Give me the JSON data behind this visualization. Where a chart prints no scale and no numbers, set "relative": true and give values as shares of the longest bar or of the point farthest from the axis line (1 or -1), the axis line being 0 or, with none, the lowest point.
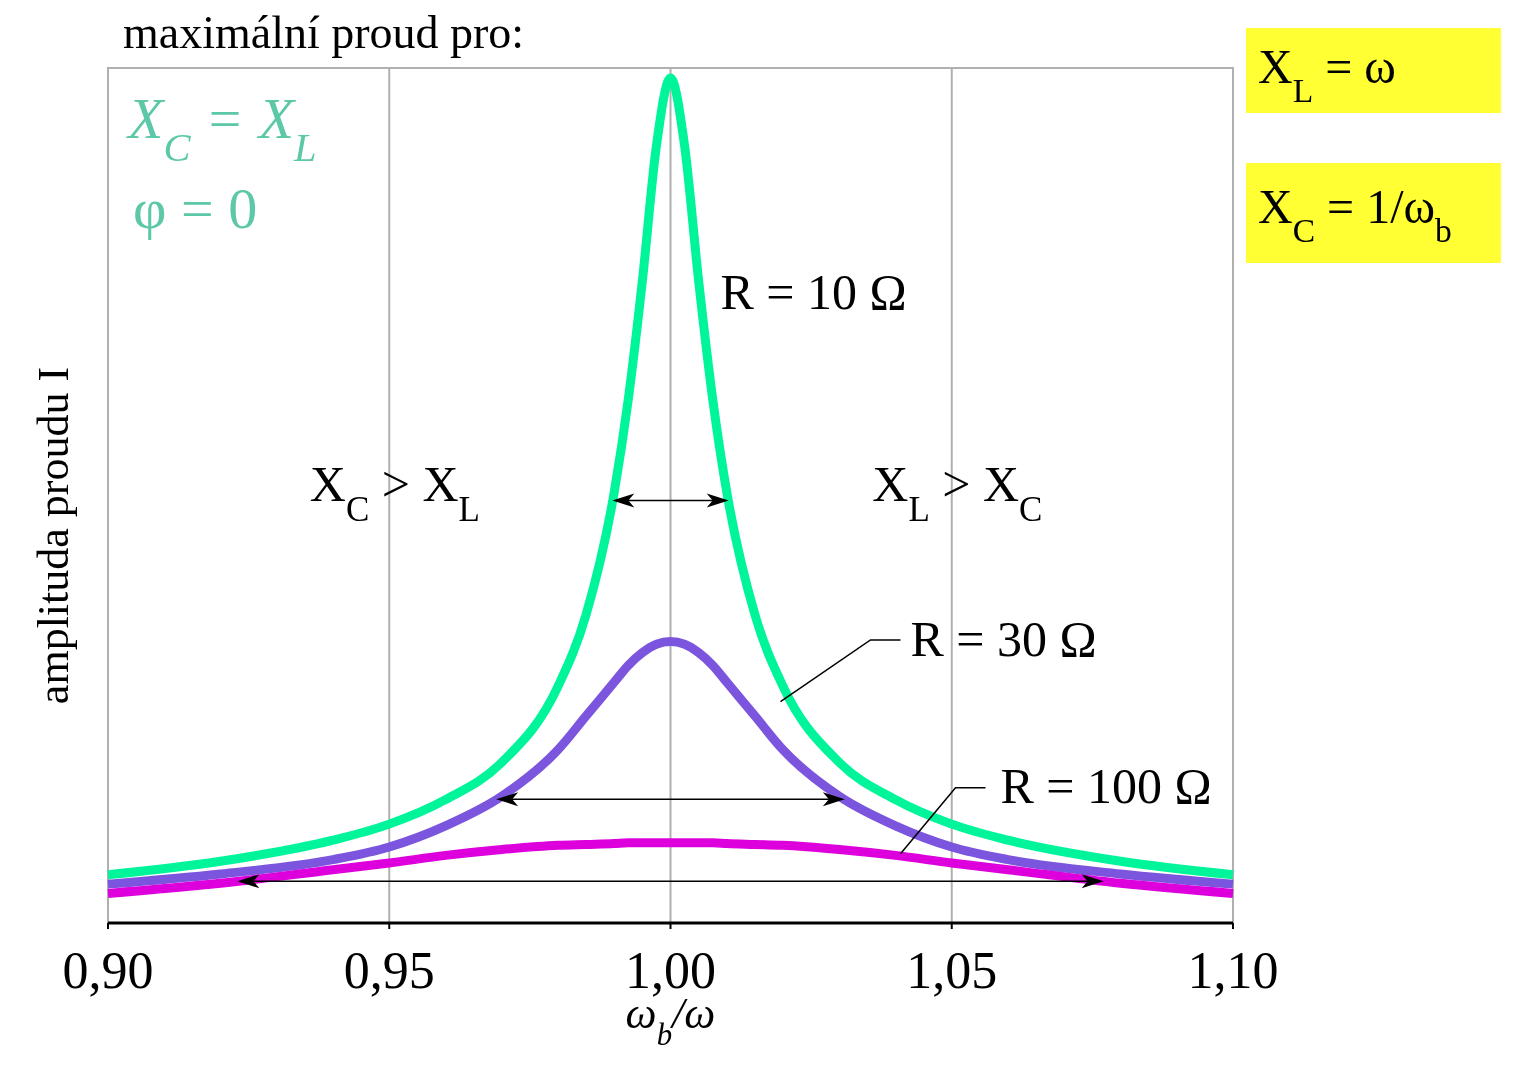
{
  "chart_data": {
    "type": "line",
    "relative": true,
    "xlabel": "ω$_{b}$/ω",
    "ylabel": "amplituda proudu I",
    "x": [
      0.9,
      0.92,
      0.94,
      0.95,
      0.96,
      0.97,
      0.98,
      0.985,
      0.99,
      0.9925,
      0.995,
      0.9975,
      1.0,
      1.0025,
      1.005,
      1.0075,
      1.01,
      1.015,
      1.02,
      1.03,
      1.04,
      1.05,
      1.06,
      1.08,
      1.1
    ],
    "series": [
      {
        "name": "R = 10 Ω",
        "color": "#00f59a",
        "values": [
          0.057,
          0.073,
          0.098,
          0.117,
          0.146,
          0.19,
          0.28,
          0.365,
          0.51,
          0.62,
          0.76,
          0.92,
          1,
          0.92,
          0.76,
          0.62,
          0.51,
          0.365,
          0.28,
          0.19,
          0.146,
          0.117,
          0.098,
          0.073,
          0.057
        ]
      },
      {
        "name": "R = 30 Ω",
        "color": "#7b55dd",
        "values": [
          0.046,
          0.058,
          0.075,
          0.09,
          0.115,
          0.15,
          0.205,
          0.245,
          0.285,
          0.305,
          0.32,
          0.33,
          0.333,
          0.33,
          0.32,
          0.305,
          0.285,
          0.245,
          0.205,
          0.15,
          0.115,
          0.09,
          0.075,
          0.058,
          0.046
        ]
      },
      {
        "name": "R = 100 Ω",
        "color": "#dd00dd",
        "values": [
          0.035,
          0.047,
          0.063,
          0.071,
          0.08,
          0.087,
          0.092,
          0.093,
          0.094,
          0.095,
          0.095,
          0.095,
          0.095,
          0.095,
          0.095,
          0.095,
          0.094,
          0.093,
          0.092,
          0.087,
          0.08,
          0.071,
          0.063,
          0.047,
          0.035
        ]
      }
    ],
    "xlim": [
      0.9,
      1.1
    ],
    "xticks": [
      {
        "value": 0.9,
        "label": "0,90"
      },
      {
        "value": 0.95,
        "label": "0,95"
      },
      {
        "value": 1.0,
        "label": "1,00"
      },
      {
        "value": 1.05,
        "label": "1,05"
      },
      {
        "value": 1.1,
        "label": "1,10"
      }
    ],
    "grid": "x",
    "marker": "none",
    "line_style": "solid",
    "annotations": [
      "maximální proud pro:",
      "X$_{C}$ = X$_{L}$",
      "φ = 0",
      "X$_{C}$ > X$_{L}$",
      "X$_{L}$ > X$_{C}$",
      "X$_{L}$ = ω",
      "X$_{C}$ = 1/ω$_{b}$"
    ]
  }
}
